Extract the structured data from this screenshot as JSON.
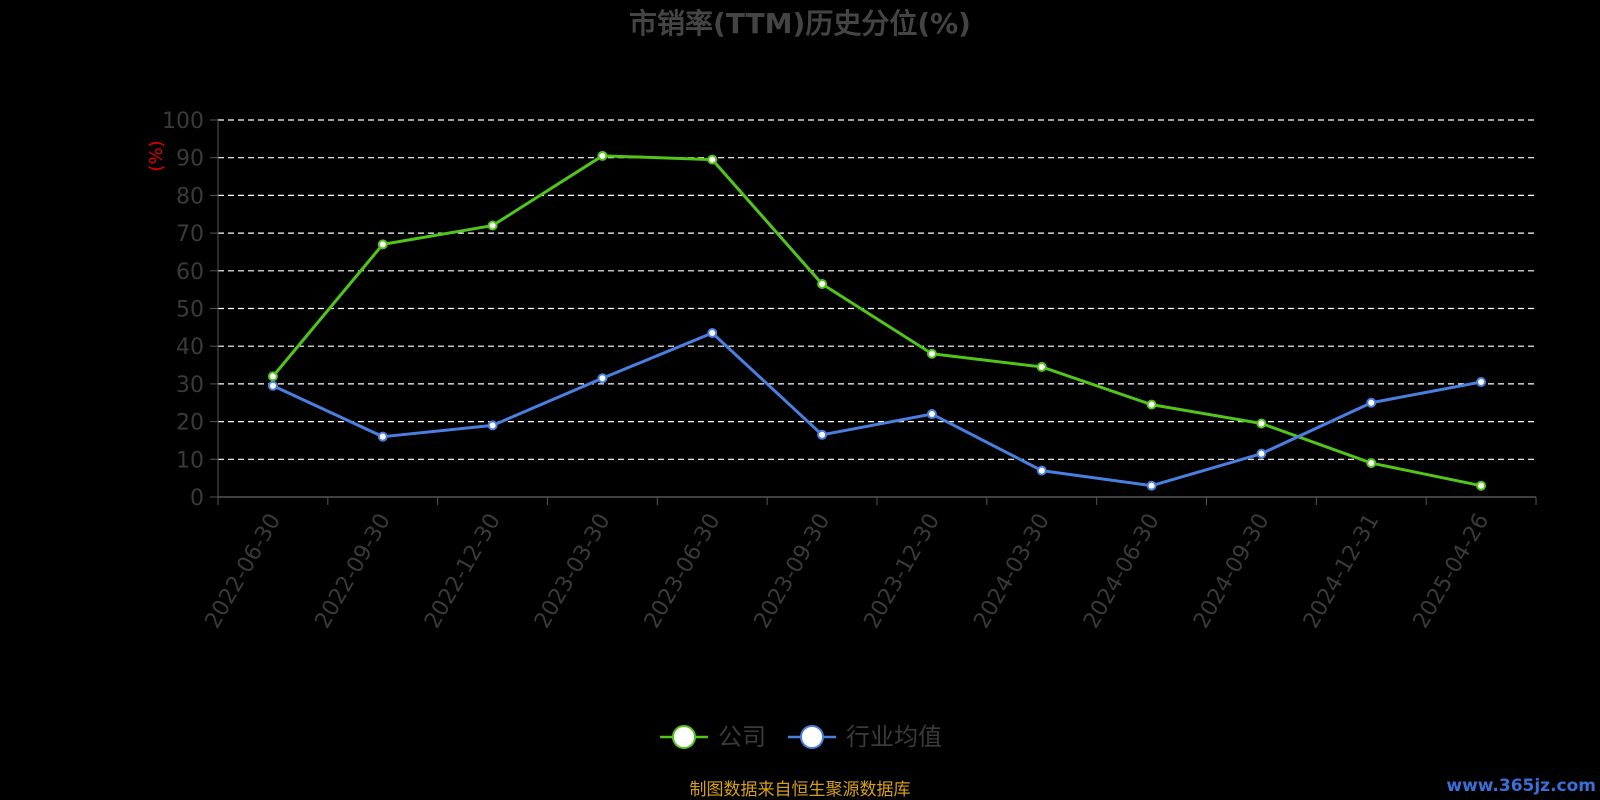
{
  "chart_data": {
    "type": "line",
    "title": "市销率(TTM)历史分位(%)",
    "ylabel": "(%)",
    "xlabel": "",
    "ylim": [
      0,
      100
    ],
    "yticks": [
      0,
      10,
      20,
      30,
      40,
      50,
      60,
      70,
      80,
      90,
      100
    ],
    "grid": true,
    "legend_position": "bottom",
    "categories": [
      "2022-06-30",
      "2022-09-30",
      "2022-12-30",
      "2023-03-30",
      "2023-06-30",
      "2023-09-30",
      "2023-12-30",
      "2024-03-30",
      "2024-06-30",
      "2024-09-30",
      "2024-12-31",
      "2025-04-26"
    ],
    "series": [
      {
        "name": "公司",
        "color": "#52c41a",
        "values": [
          32,
          67,
          72,
          90.5,
          89.5,
          56.5,
          38,
          34.5,
          24.5,
          19.5,
          9,
          3
        ]
      },
      {
        "name": "行业均值",
        "color": "#4a7fe0",
        "values": [
          29.5,
          16,
          19,
          31.5,
          43.5,
          16.5,
          22,
          7,
          3,
          11.5,
          25,
          30.5
        ]
      }
    ]
  },
  "footer": {
    "source": "制图数据来自恒生聚源数据库",
    "watermark": "www.365jz.com"
  }
}
